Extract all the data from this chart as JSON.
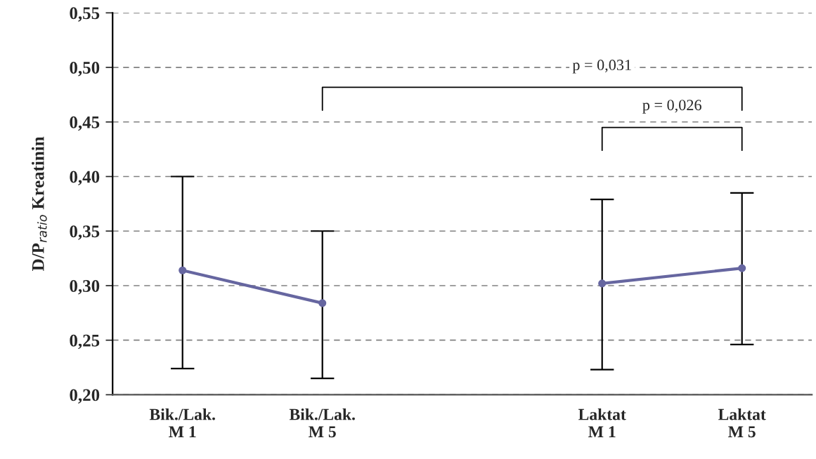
{
  "chart_data": {
    "type": "line",
    "ylabel": "D/P$_{ratio}$ Kreatinin",
    "categories": [
      "Bik./Lak.\nM 1",
      "Bik./Lak.\nM 5",
      null,
      "Laktat\nM 1",
      "Laktat\nM 5"
    ],
    "series": [
      {
        "color": "#6666a0",
        "values": [
          0.314,
          0.284,
          null,
          0.302,
          0.316
        ],
        "errors": [
          [
            0.224,
            0.4
          ],
          [
            0.215,
            0.35
          ],
          null,
          [
            0.223,
            0.379
          ],
          [
            0.246,
            0.385
          ]
        ]
      }
    ],
    "ylim": [
      0.2,
      0.55
    ],
    "yticks": [
      {
        "value": 0.2,
        "label": "0,20"
      },
      {
        "value": 0.25,
        "label": "0,25"
      },
      {
        "value": 0.3,
        "label": "0,30"
      },
      {
        "value": 0.35,
        "label": "0,35"
      },
      {
        "value": 0.4,
        "label": "0,40"
      },
      {
        "value": 0.45,
        "label": "0,45"
      },
      {
        "value": 0.5,
        "label": "0,50"
      },
      {
        "value": 0.55,
        "label": "0,55"
      }
    ],
    "grid": "y",
    "marker": "circle",
    "line_style": "solid",
    "annotations": [
      "p = 0,031",
      "p = 0,026"
    ]
  }
}
